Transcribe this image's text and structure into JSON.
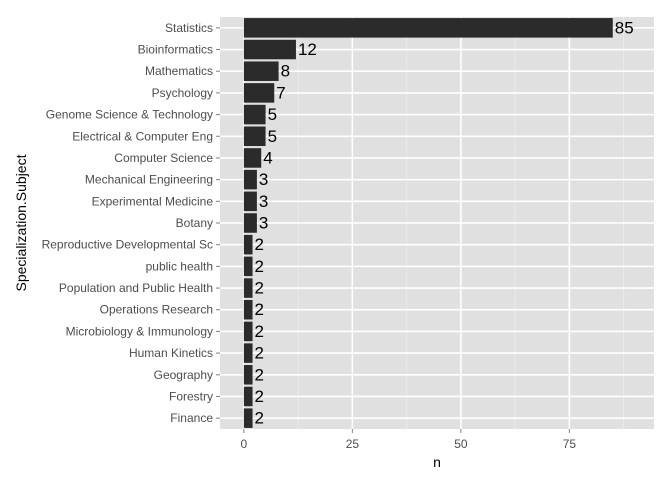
{
  "chart_data": {
    "type": "bar",
    "orientation": "horizontal",
    "categories": [
      "Statistics",
      "Bioinformatics",
      "Mathematics",
      "Psychology",
      "Genome Science & Technology",
      "Electrical & Computer Eng",
      "Computer Science",
      "Mechanical Engineering",
      "Experimental Medicine",
      "Botany",
      "Reproductive Developmental Sc",
      "public health",
      "Population and Public Health",
      "Operations Research",
      "Microbiology & Immunology",
      "Human Kinetics",
      "Geography",
      "Forestry",
      "Finance"
    ],
    "values": [
      85,
      12,
      8,
      7,
      5,
      5,
      4,
      3,
      3,
      3,
      2,
      2,
      2,
      2,
      2,
      2,
      2,
      2,
      2
    ],
    "xlabel": "n",
    "ylabel": "Specialization.Subject",
    "xlim": [
      -5.5,
      94.5
    ],
    "xticks": [
      0,
      25,
      50,
      75
    ],
    "grid": true,
    "colors": {
      "panel_background": "#e0e0e0",
      "grid_major": "#ffffff",
      "grid_minor": "#ebebeb",
      "bar_fill": "#2b2b2b",
      "tick_text": "#4d4d4d"
    }
  }
}
